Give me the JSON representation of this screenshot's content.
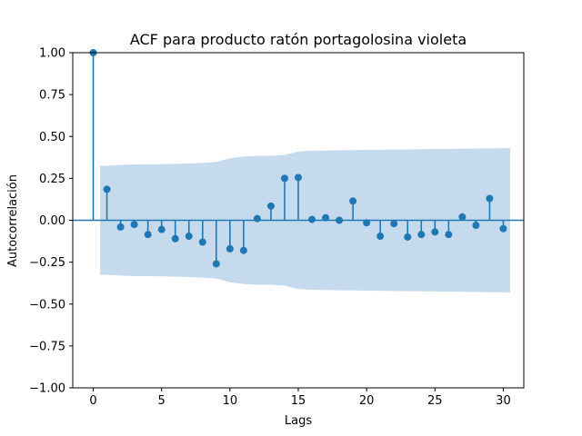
{
  "chart_data": {
    "type": "scatter",
    "title": "ACF para producto ratón portagolosina violeta",
    "xlabel": "Lags",
    "ylabel": "Autocorrelación",
    "xlim": [
      -1.5,
      31.5
    ],
    "ylim": [
      -1.0,
      1.0
    ],
    "x_ticks": [
      0,
      5,
      10,
      15,
      20,
      25,
      30
    ],
    "x_tick_labels": [
      "0",
      "5",
      "10",
      "15",
      "20",
      "25",
      "30"
    ],
    "y_ticks": [
      1.0,
      0.75,
      0.5,
      0.25,
      0.0,
      -0.25,
      -0.5,
      -0.75,
      -1.0
    ],
    "y_tick_labels": [
      "1.00",
      "0.75",
      "0.50",
      "0.25",
      "0.00",
      "−0.25",
      "−0.50",
      "−0.75",
      "−1.00"
    ],
    "grid": false,
    "lags": [
      0,
      1,
      2,
      3,
      4,
      5,
      6,
      7,
      8,
      9,
      10,
      11,
      12,
      13,
      14,
      15,
      16,
      17,
      18,
      19,
      20,
      21,
      22,
      23,
      24,
      25,
      26,
      27,
      28,
      29,
      30
    ],
    "acf": [
      1.0,
      0.185,
      -0.04,
      -0.025,
      -0.085,
      -0.055,
      -0.11,
      -0.095,
      -0.13,
      -0.26,
      -0.17,
      -0.18,
      0.01,
      0.085,
      0.25,
      0.255,
      0.005,
      0.015,
      0.0,
      0.115,
      -0.015,
      -0.095,
      -0.02,
      -0.1,
      -0.085,
      -0.07,
      -0.085,
      0.02,
      -0.03,
      0.13,
      -0.05
    ],
    "confidence_band": {
      "lags": [
        0.5,
        1,
        2,
        3,
        4,
        5,
        6,
        7,
        8,
        9,
        10,
        11,
        12,
        13,
        14,
        15,
        16,
        17,
        18,
        19,
        20,
        21,
        22,
        23,
        24,
        25,
        26,
        27,
        28,
        29,
        30,
        30.5
      ],
      "upper": [
        0.325,
        0.325,
        0.33,
        0.333,
        0.333,
        0.335,
        0.337,
        0.339,
        0.343,
        0.348,
        0.37,
        0.38,
        0.385,
        0.385,
        0.39,
        0.41,
        0.415,
        0.416,
        0.418,
        0.419,
        0.42,
        0.421,
        0.422,
        0.423,
        0.424,
        0.425,
        0.426,
        0.427,
        0.428,
        0.429,
        0.43,
        0.43
      ],
      "lower": [
        -0.325,
        -0.325,
        -0.33,
        -0.333,
        -0.333,
        -0.335,
        -0.337,
        -0.339,
        -0.343,
        -0.348,
        -0.37,
        -0.38,
        -0.385,
        -0.385,
        -0.39,
        -0.41,
        -0.415,
        -0.416,
        -0.418,
        -0.419,
        -0.42,
        -0.421,
        -0.422,
        -0.423,
        -0.424,
        -0.425,
        -0.426,
        -0.427,
        -0.428,
        -0.429,
        -0.43,
        -0.43
      ]
    },
    "colors": {
      "stem": "#1f77b4",
      "marker": "#1f77b4",
      "band": "#c5dbed",
      "zero_line": "#1f77b4",
      "axes": "#000000"
    }
  }
}
